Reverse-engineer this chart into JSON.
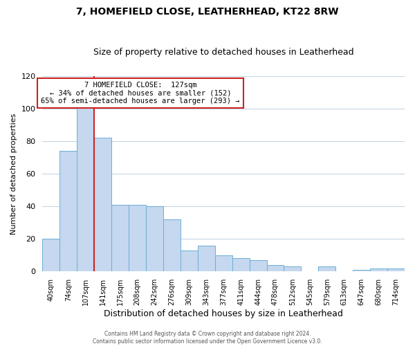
{
  "title": "7, HOMEFIELD CLOSE, LEATHERHEAD, KT22 8RW",
  "subtitle": "Size of property relative to detached houses in Leatherhead",
  "xlabel": "Distribution of detached houses by size in Leatherhead",
  "ylabel": "Number of detached properties",
  "bar_labels": [
    "40sqm",
    "74sqm",
    "107sqm",
    "141sqm",
    "175sqm",
    "208sqm",
    "242sqm",
    "276sqm",
    "309sqm",
    "343sqm",
    "377sqm",
    "411sqm",
    "444sqm",
    "478sqm",
    "512sqm",
    "545sqm",
    "579sqm",
    "613sqm",
    "647sqm",
    "680sqm",
    "714sqm"
  ],
  "bar_values": [
    20,
    74,
    101,
    82,
    41,
    41,
    40,
    32,
    13,
    16,
    10,
    8,
    7,
    4,
    3,
    0,
    3,
    0,
    1,
    2,
    2
  ],
  "bar_color": "#c5d8ef",
  "bar_edge_color": "#6baed6",
  "ylim": [
    0,
    120
  ],
  "yticks": [
    0,
    20,
    40,
    60,
    80,
    100,
    120
  ],
  "vline_color": "#cc2222",
  "annotation_title": "7 HOMEFIELD CLOSE:  127sqm",
  "annotation_line1": "← 34% of detached houses are smaller (152)",
  "annotation_line2": "65% of semi-detached houses are larger (293) →",
  "annotation_box_color": "#ffffff",
  "annotation_box_edge": "#cc2222",
  "footer1": "Contains HM Land Registry data © Crown copyright and database right 2024.",
  "footer2": "Contains public sector information licensed under the Open Government Licence v3.0.",
  "background_color": "#ffffff",
  "grid_color": "#c5d5e5",
  "vline_x_index": 2.5
}
